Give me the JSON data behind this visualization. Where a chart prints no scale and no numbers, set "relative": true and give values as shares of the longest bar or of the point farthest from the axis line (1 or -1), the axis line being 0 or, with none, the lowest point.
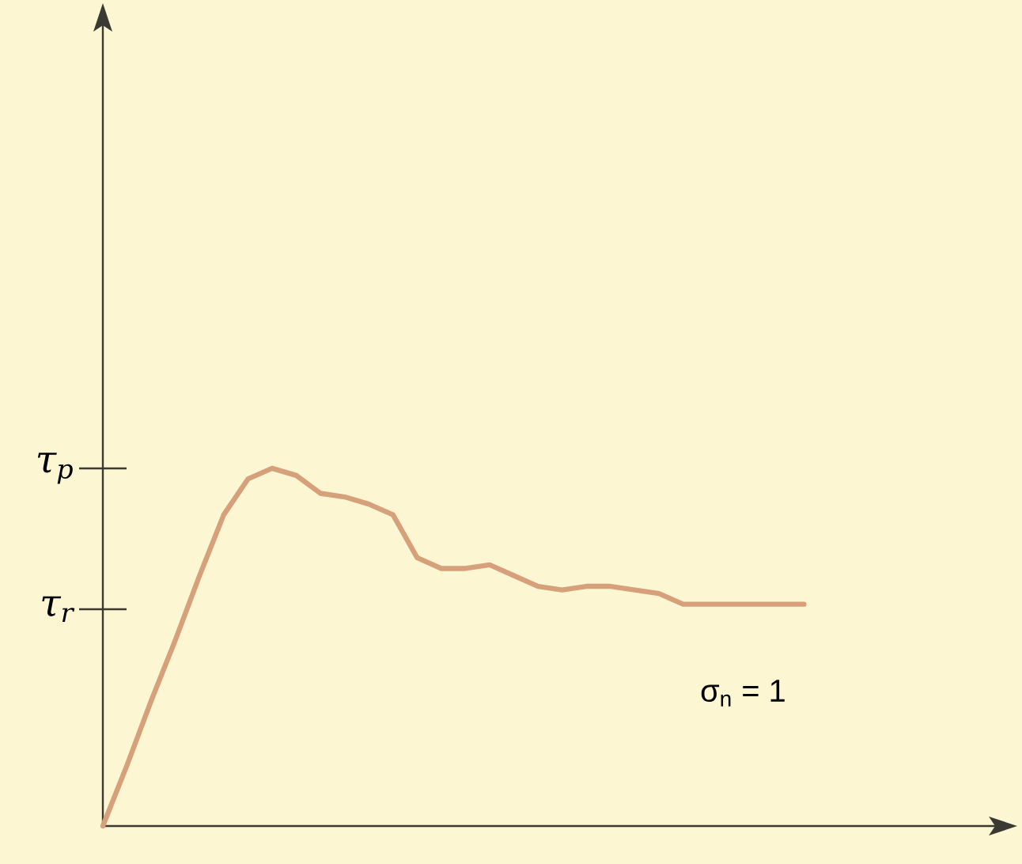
{
  "chart_data": {
    "type": "line",
    "relative": true,
    "categories": [
      null,
      null,
      null,
      null,
      null,
      null,
      null,
      null,
      null,
      null,
      null,
      null,
      null,
      null,
      null,
      null,
      null,
      null,
      null,
      null,
      null,
      null,
      null,
      null,
      null,
      null,
      null,
      null,
      null,
      null
    ],
    "series": [
      {
        "color": "#d6a07a",
        "values": [
          0,
          0.17,
          0.35,
          0.52,
          0.7,
          0.87,
          0.97,
          1,
          0.98,
          0.93,
          0.92,
          0.9,
          0.87,
          0.75,
          0.72,
          0.72,
          0.73,
          0.7,
          0.67,
          0.66,
          0.67,
          0.67,
          0.66,
          0.65,
          0.62,
          0.62,
          0.62,
          0.62,
          0.62,
          0.62
        ]
      }
    ],
    "tick_labels": "y",
    "annotations": [
      "τ$_{p}$",
      "τ$_{r}$",
      "σ$_{n}$ = 1"
    ]
  }
}
